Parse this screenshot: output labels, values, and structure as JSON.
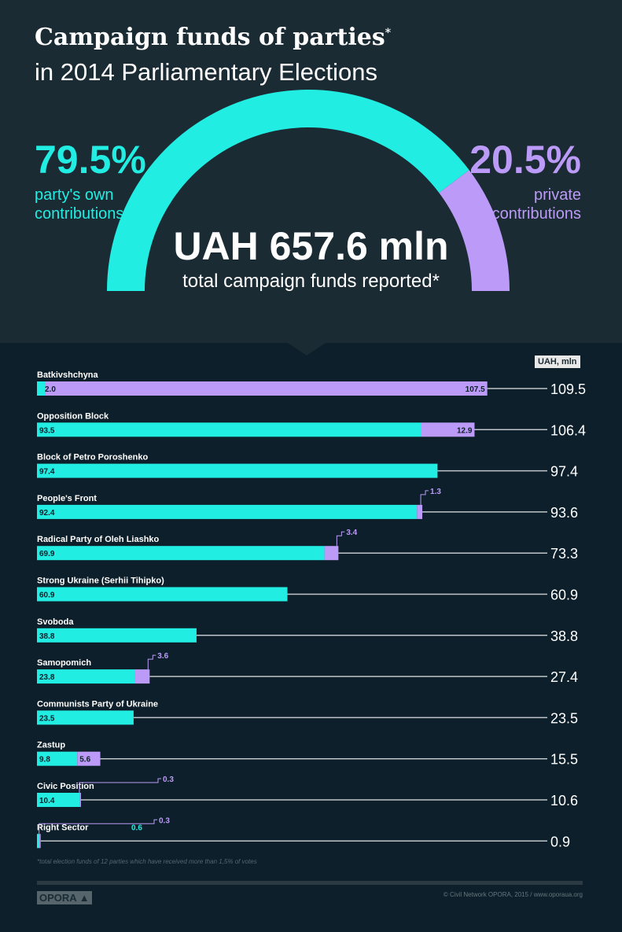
{
  "header": {
    "title_bold": "Campaign funds of parties",
    "title_mark": "*",
    "subtitle": "in 2014 Parliamentary Elections"
  },
  "summary": {
    "own_pct": "79.5%",
    "own_label_1": "party's own",
    "own_label_2": "contributions",
    "private_pct": "20.5%",
    "private_label_1": "private",
    "private_label_2": "contributions",
    "total": "UAH 657.6 mln",
    "total_label": "total campaign funds reported*",
    "own_fraction": 0.795
  },
  "colors": {
    "own": "#22ede2",
    "private": "#bb9bf7",
    "bg": "#0d1f2a",
    "header_bg": "#1b2b34"
  },
  "chart_data": {
    "type": "bar",
    "stacked": true,
    "orientation": "horizontal",
    "unit_label": "UAH, mln",
    "categories": [
      "Batkivshchyna",
      "Opposition Block",
      "Block of Petro Poroshenko",
      "People's Front",
      "Radical Party of Oleh Liashko",
      "Strong Ukraine (Serhii Tihipko)",
      "Svoboda",
      "Samopomich",
      "Communists Party of Ukraine",
      "Zastup",
      "Civic Position",
      "Right Sector"
    ],
    "series": [
      {
        "name": "party's own contributions",
        "values": [
          2.0,
          93.5,
          97.4,
          92.4,
          69.9,
          60.9,
          38.8,
          23.8,
          23.5,
          9.8,
          10.4,
          0.6
        ],
        "labels": [
          "2.0",
          "93.5",
          "97.4",
          "92.4",
          "69.9",
          "60.9",
          "38.8",
          "23.8",
          "23.5",
          "9.8",
          "10.4",
          "0.6"
        ]
      },
      {
        "name": "private contributions",
        "values": [
          107.5,
          12.9,
          0,
          1.3,
          3.4,
          0,
          0,
          3.6,
          0,
          5.6,
          0.3,
          0.3
        ],
        "labels": [
          "107.5",
          "12.9",
          "",
          "1.3",
          "3.4",
          "",
          "",
          "3.6",
          "",
          "5.6",
          "0.3",
          "0.3"
        ]
      }
    ],
    "totals": [
      "109.5",
      "106.4",
      "97.4",
      "93.6",
      "73.3",
      "60.9",
      "38.8",
      "27.4",
      "23.5",
      "15.5",
      "10.6",
      "0.9"
    ]
  },
  "footer": {
    "note": "*total election funds of 12 parties which have received more than 1,5% of votes",
    "logo": "OPORA ▲",
    "copyright": "© Civil Network OPORA, 2015 / www.oporaua.org"
  }
}
